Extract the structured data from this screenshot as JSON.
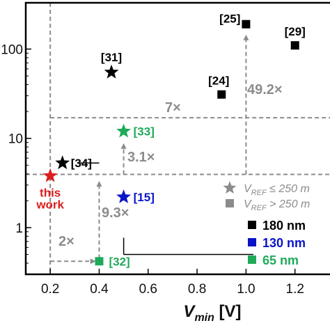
{
  "chart_data": {
    "type": "scatter",
    "title": "",
    "xlabel_main": "V",
    "xlabel_sub": "min",
    "xlabel_unit": " [V]",
    "ylabel": "",
    "y_scale": "log",
    "xlim": [
      0.1,
      1.38
    ],
    "ylim": [
      0.3,
      330
    ],
    "x_ticks": [
      {
        "value": 0.2,
        "label": "0.2"
      },
      {
        "value": 0.4,
        "label": "0.4"
      },
      {
        "value": 0.6,
        "label": "0.6"
      },
      {
        "value": 0.8,
        "label": "0.8"
      },
      {
        "value": 1.0,
        "label": "1.0"
      },
      {
        "value": 1.2,
        "label": "1.2"
      }
    ],
    "y_ticks": [
      {
        "value": 1,
        "label": "1"
      },
      {
        "value": 10,
        "label": "10"
      },
      {
        "value": 100,
        "label": "100"
      }
    ],
    "colors": {
      "180nm": "#000000",
      "130nm": "#0a14c8",
      "65nm": "#1faa5a",
      "this_work": "#dc1e1e",
      "guide": "#8c8c8c"
    },
    "points": [
      {
        "label": "[25]",
        "x": 1.0,
        "y": 190,
        "marker": "square",
        "node": "180nm"
      },
      {
        "label": "[29]",
        "x": 1.2,
        "y": 110,
        "marker": "square",
        "node": "180nm"
      },
      {
        "label": "[31]",
        "x": 0.45,
        "y": 55,
        "marker": "star",
        "node": "180nm"
      },
      {
        "label": "[24]",
        "x": 0.9,
        "y": 31,
        "marker": "square",
        "node": "180nm"
      },
      {
        "label": "[33]",
        "x": 0.5,
        "y": 12,
        "marker": "star",
        "node": "65nm"
      },
      {
        "label": "[34]",
        "x": 0.25,
        "y": 5.3,
        "marker": "star",
        "node": "180nm"
      },
      {
        "label": "this work",
        "x": 0.2,
        "y": 3.8,
        "marker": "star",
        "node": "this_work"
      },
      {
        "label": "[15]",
        "x": 0.5,
        "y": 2.2,
        "marker": "star",
        "node": "130nm"
      },
      {
        "label": "[32]",
        "x": 0.4,
        "y": 0.42,
        "marker": "square",
        "node": "65nm"
      }
    ],
    "annotations": [
      "49.2×",
      "7×",
      "3.1×",
      "9.3×",
      "2×"
    ],
    "legend": {
      "markers": [
        {
          "marker": "star",
          "prefix": "V",
          "sub": "REF",
          "text": " ≤  250 m"
        },
        {
          "marker": "square",
          "prefix": "V",
          "sub": "REF",
          "text": " > 250 m"
        }
      ],
      "nodes": [
        {
          "label": "180 nm",
          "color": "#000000"
        },
        {
          "label": "130 nm",
          "color": "#0a14c8"
        },
        {
          "label": "65 nm",
          "color": "#1faa5a"
        }
      ]
    }
  }
}
